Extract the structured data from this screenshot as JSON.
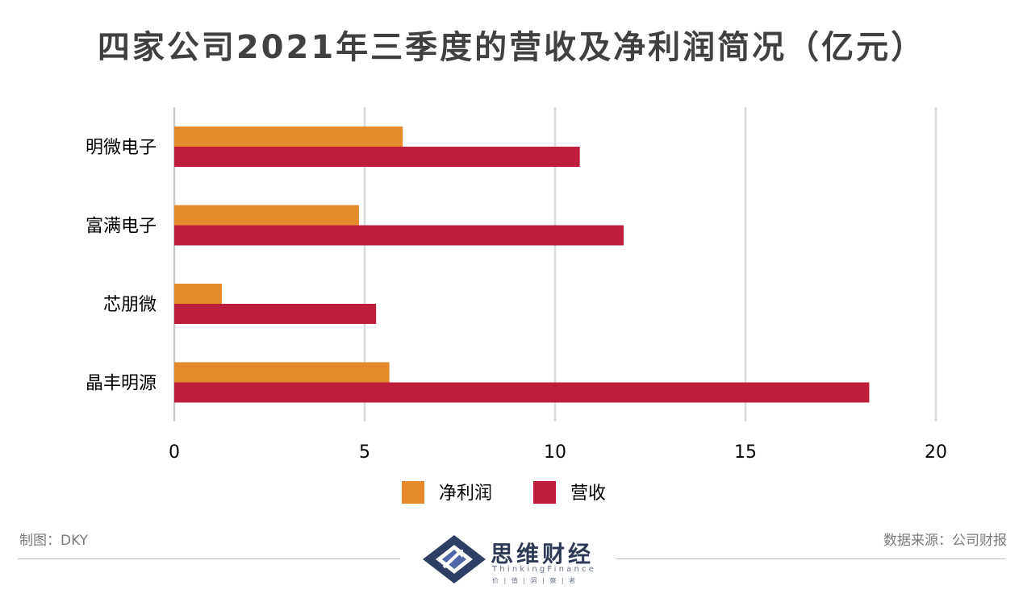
{
  "chart_data": {
    "type": "bar",
    "orientation": "horizontal",
    "title": "四家公司2021年三季度的营收及净利润简况（亿元）",
    "categories": [
      "明微电子",
      "富满电子",
      "芯朋微",
      "晶丰明源"
    ],
    "series": [
      {
        "name": "净利润",
        "color": "#E58A2A",
        "values": [
          6.0,
          4.85,
          1.25,
          5.65
        ]
      },
      {
        "name": "营收",
        "color": "#BE1E3C",
        "values": [
          10.65,
          11.8,
          5.3,
          18.25
        ]
      }
    ],
    "xlim": [
      0,
      20
    ],
    "xticks": [
      "0",
      "5",
      "10",
      "15",
      "20"
    ],
    "grid": true,
    "legend_position": "bottom"
  },
  "footer": {
    "maker": "制图：DKY",
    "source": "数据来源：公司财报"
  },
  "logo": {
    "name": "思维财经",
    "english": "ThinkingFinance",
    "tagline": "价 | 值 | 洞 | 察 | 者"
  }
}
